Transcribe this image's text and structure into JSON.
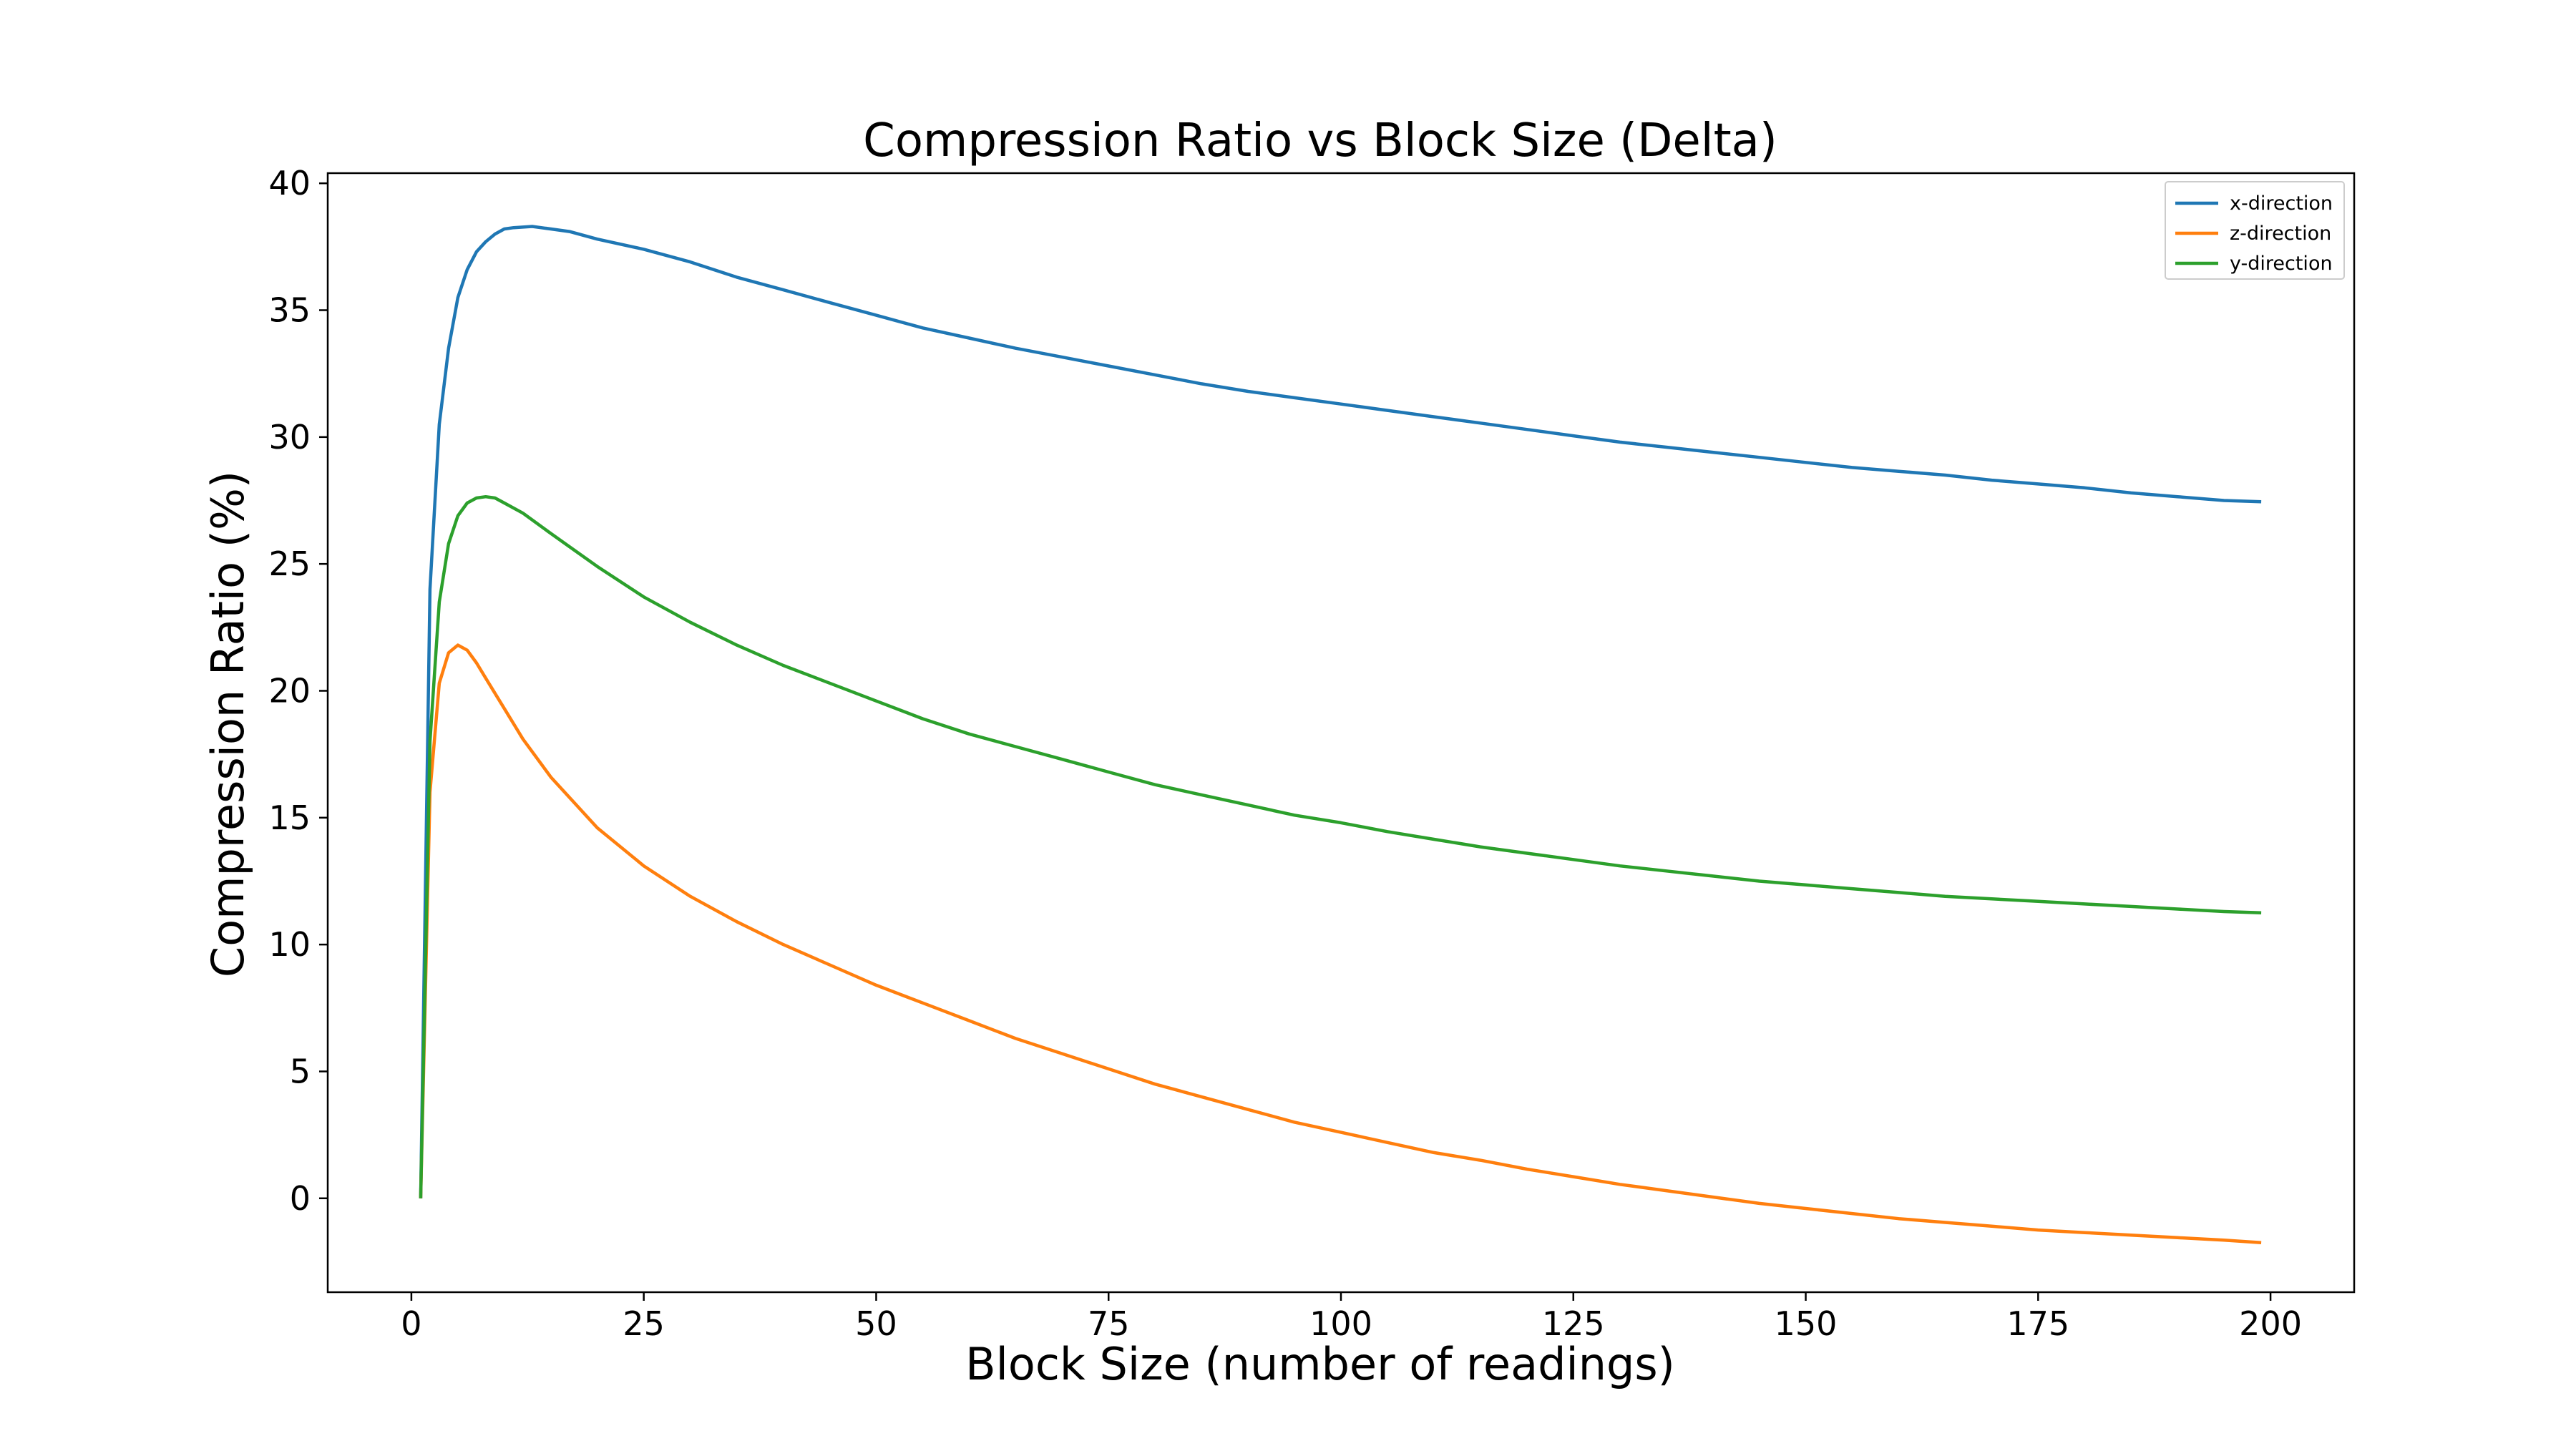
{
  "chart_data": {
    "type": "line",
    "title": "Compression Ratio vs Block Size (Delta)",
    "xlabel": "Block Size (number of readings)",
    "ylabel": "Compression Ratio (%)",
    "xlim": [
      -9,
      209
    ],
    "ylim": [
      -3.7,
      40.4
    ],
    "xticks": [
      0,
      25,
      50,
      75,
      100,
      125,
      150,
      175,
      200
    ],
    "yticks": [
      0,
      5,
      10,
      15,
      20,
      25,
      30,
      35,
      40
    ],
    "grid": false,
    "legend_position": "top-right",
    "series": [
      {
        "name": "x-direction",
        "color": "#1f77b4",
        "points": [
          [
            1,
            0
          ],
          [
            2,
            24
          ],
          [
            3,
            30.5
          ],
          [
            4,
            33.5
          ],
          [
            5,
            35.5
          ],
          [
            6,
            36.6
          ],
          [
            7,
            37.3
          ],
          [
            8,
            37.7
          ],
          [
            9,
            38
          ],
          [
            10,
            38.2
          ],
          [
            11,
            38.25
          ],
          [
            13,
            38.3
          ],
          [
            15,
            38.2
          ],
          [
            17,
            38.1
          ],
          [
            20,
            37.8
          ],
          [
            25,
            37.4
          ],
          [
            30,
            36.9
          ],
          [
            35,
            36.3
          ],
          [
            40,
            35.8
          ],
          [
            45,
            35.3
          ],
          [
            50,
            34.8
          ],
          [
            55,
            34.3
          ],
          [
            60,
            33.9
          ],
          [
            65,
            33.5
          ],
          [
            70,
            33.15
          ],
          [
            75,
            32.8
          ],
          [
            80,
            32.45
          ],
          [
            85,
            32.1
          ],
          [
            90,
            31.8
          ],
          [
            95,
            31.55
          ],
          [
            100,
            31.3
          ],
          [
            105,
            31.05
          ],
          [
            110,
            30.8
          ],
          [
            115,
            30.55
          ],
          [
            120,
            30.3
          ],
          [
            125,
            30.05
          ],
          [
            130,
            29.8
          ],
          [
            135,
            29.6
          ],
          [
            140,
            29.4
          ],
          [
            145,
            29.2
          ],
          [
            150,
            29
          ],
          [
            155,
            28.8
          ],
          [
            160,
            28.65
          ],
          [
            165,
            28.5
          ],
          [
            170,
            28.3
          ],
          [
            175,
            28.15
          ],
          [
            180,
            28
          ],
          [
            185,
            27.8
          ],
          [
            190,
            27.65
          ],
          [
            195,
            27.5
          ],
          [
            199,
            27.45
          ]
        ]
      },
      {
        "name": "z-direction",
        "color": "#ff7f0e",
        "points": [
          [
            1,
            0
          ],
          [
            2,
            16
          ],
          [
            3,
            20.3
          ],
          [
            4,
            21.5
          ],
          [
            5,
            21.8
          ],
          [
            6,
            21.6
          ],
          [
            7,
            21.1
          ],
          [
            8,
            20.5
          ],
          [
            10,
            19.3
          ],
          [
            12,
            18.1
          ],
          [
            15,
            16.6
          ],
          [
            20,
            14.6
          ],
          [
            25,
            13.1
          ],
          [
            30,
            11.9
          ],
          [
            35,
            10.9
          ],
          [
            40,
            10
          ],
          [
            45,
            9.2
          ],
          [
            50,
            8.4
          ],
          [
            55,
            7.7
          ],
          [
            60,
            7
          ],
          [
            65,
            6.3
          ],
          [
            70,
            5.7
          ],
          [
            75,
            5.1
          ],
          [
            80,
            4.5
          ],
          [
            85,
            4
          ],
          [
            90,
            3.5
          ],
          [
            95,
            3
          ],
          [
            100,
            2.6
          ],
          [
            105,
            2.2
          ],
          [
            110,
            1.8
          ],
          [
            115,
            1.5
          ],
          [
            120,
            1.15
          ],
          [
            125,
            0.85
          ],
          [
            130,
            0.55
          ],
          [
            135,
            0.3
          ],
          [
            140,
            0.05
          ],
          [
            145,
            -0.2
          ],
          [
            150,
            -0.4
          ],
          [
            155,
            -0.6
          ],
          [
            160,
            -0.8
          ],
          [
            165,
            -0.95
          ],
          [
            170,
            -1.1
          ],
          [
            175,
            -1.25
          ],
          [
            180,
            -1.35
          ],
          [
            185,
            -1.45
          ],
          [
            190,
            -1.55
          ],
          [
            195,
            -1.65
          ],
          [
            199,
            -1.75
          ]
        ]
      },
      {
        "name": "y-direction",
        "color": "#2ca02c",
        "points": [
          [
            1,
            0
          ],
          [
            2,
            18
          ],
          [
            3,
            23.5
          ],
          [
            4,
            25.8
          ],
          [
            5,
            26.9
          ],
          [
            6,
            27.4
          ],
          [
            7,
            27.6
          ],
          [
            8,
            27.65
          ],
          [
            9,
            27.6
          ],
          [
            10,
            27.4
          ],
          [
            12,
            27
          ],
          [
            15,
            26.2
          ],
          [
            20,
            24.9
          ],
          [
            25,
            23.7
          ],
          [
            30,
            22.7
          ],
          [
            35,
            21.8
          ],
          [
            40,
            21
          ],
          [
            45,
            20.3
          ],
          [
            50,
            19.6
          ],
          [
            55,
            18.9
          ],
          [
            60,
            18.3
          ],
          [
            65,
            17.8
          ],
          [
            70,
            17.3
          ],
          [
            75,
            16.8
          ],
          [
            80,
            16.3
          ],
          [
            85,
            15.9
          ],
          [
            90,
            15.5
          ],
          [
            95,
            15.1
          ],
          [
            100,
            14.8
          ],
          [
            105,
            14.45
          ],
          [
            110,
            14.15
          ],
          [
            115,
            13.85
          ],
          [
            120,
            13.6
          ],
          [
            125,
            13.35
          ],
          [
            130,
            13.1
          ],
          [
            135,
            12.9
          ],
          [
            140,
            12.7
          ],
          [
            145,
            12.5
          ],
          [
            150,
            12.35
          ],
          [
            155,
            12.2
          ],
          [
            160,
            12.05
          ],
          [
            165,
            11.9
          ],
          [
            170,
            11.8
          ],
          [
            175,
            11.7
          ],
          [
            180,
            11.6
          ],
          [
            185,
            11.5
          ],
          [
            190,
            11.4
          ],
          [
            195,
            11.3
          ],
          [
            199,
            11.25
          ]
        ]
      }
    ]
  }
}
